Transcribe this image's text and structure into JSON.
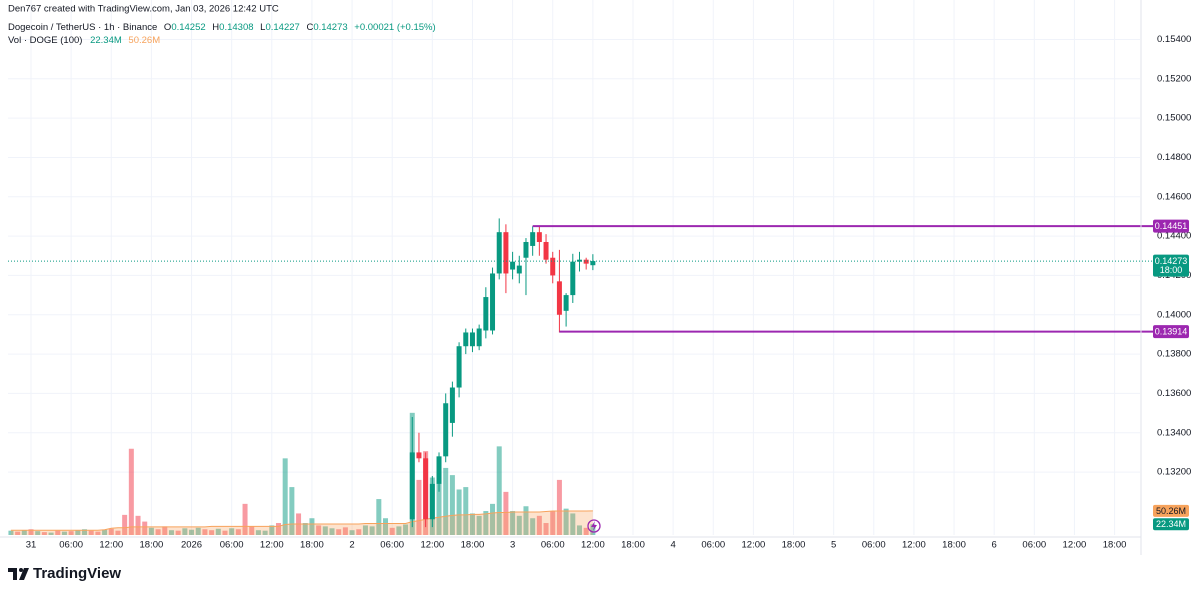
{
  "header": {
    "credit": "Den767 created with TradingView.com, Jan 03, 2026 12:42 UTC",
    "symbol": "Dogecoin / TetherUS · 1h · Binance",
    "change": "+0.00021 (+0.15%)",
    "volume_study": "Vol · DOGE (100)"
  },
  "chart_data": {
    "type": "candlestick",
    "ohlc_letters": [
      "O",
      "H",
      "L",
      "C"
    ],
    "x": [
      57,
      58,
      59,
      60,
      61,
      62,
      63,
      64,
      65,
      66,
      67,
      68,
      69,
      70,
      71,
      72,
      73,
      74,
      75,
      76,
      77,
      78,
      79,
      80,
      81,
      82,
      83,
      84
    ],
    "open": [
      0.1296,
      0.133,
      0.1327,
      0.1296,
      0.1314,
      0.1328,
      0.1345,
      0.1363,
      0.1384,
      0.1384,
      0.1384,
      0.1392,
      0.1392,
      0.1421,
      0.1442,
      0.1423,
      0.1421,
      0.1429,
      0.1435,
      0.1442,
      0.1437,
      0.1429,
      0.1417,
      0.1402,
      0.141,
      0.1427,
      0.1428,
      0.14252
    ],
    "high": [
      0.1348,
      0.134,
      0.133,
      0.1318,
      0.133,
      0.136,
      0.1366,
      0.1386,
      0.1393,
      0.1393,
      0.1395,
      0.1414,
      0.1424,
      0.1449,
      0.1446,
      0.1432,
      0.143,
      0.1439,
      0.1445,
      0.1445,
      0.1441,
      0.1432,
      0.1433,
      0.1411,
      0.1431,
      0.1432,
      0.1429,
      0.14308
    ],
    "low": [
      0.1292,
      0.1325,
      0.1292,
      0.1292,
      0.131,
      0.1325,
      0.1338,
      0.1358,
      0.138,
      0.1381,
      0.1382,
      0.1388,
      0.139,
      0.1418,
      0.1411,
      0.1418,
      0.1416,
      0.141,
      0.143,
      0.143,
      0.1426,
      0.1416,
      0.1391,
      0.1394,
      0.1406,
      0.1422,
      0.1423,
      0.14227
    ],
    "close": [
      0.133,
      0.1327,
      0.1296,
      0.1314,
      0.1328,
      0.1355,
      0.1363,
      0.1384,
      0.1391,
      0.1391,
      0.1393,
      0.1409,
      0.1421,
      0.1442,
      0.1421,
      0.1427,
      0.1425,
      0.1437,
      0.1442,
      0.1437,
      0.1428,
      0.142,
      0.14,
      0.141,
      0.1427,
      0.1428,
      0.1426,
      0.14273
    ],
    "up_color": "#089981",
    "down_color": "#f23645",
    "volume": {
      "x": [
        -3,
        -2,
        -1,
        0,
        1,
        2,
        3,
        4,
        5,
        6,
        7,
        8,
        9,
        10,
        11,
        12,
        13,
        14,
        15,
        16,
        17,
        18,
        19,
        20,
        21,
        22,
        23,
        24,
        25,
        26,
        27,
        28,
        29,
        30,
        31,
        32,
        33,
        34,
        35,
        36,
        37,
        38,
        39,
        40,
        41,
        42,
        43,
        44,
        45,
        46,
        47,
        48,
        49,
        50,
        51,
        52,
        53,
        54,
        55,
        56,
        57,
        58,
        59,
        60,
        61,
        62,
        63,
        64,
        65,
        66,
        67,
        68,
        69,
        70,
        71,
        72,
        73,
        74,
        75,
        76,
        77,
        78,
        79,
        80,
        81,
        82,
        83,
        84
      ],
      "values": [
        9,
        7,
        10,
        12,
        8,
        6,
        5,
        9,
        7,
        8,
        10,
        12,
        9,
        7,
        11,
        13,
        9,
        42,
        180,
        40,
        28,
        15,
        12,
        18,
        10,
        9,
        14,
        11,
        15,
        12,
        10,
        13,
        9,
        14,
        12,
        65,
        18,
        10,
        9,
        20,
        25,
        160,
        100,
        45,
        25,
        35,
        20,
        18,
        14,
        12,
        16,
        10,
        12,
        20,
        18,
        75,
        35,
        15,
        18,
        22,
        255,
        115,
        175,
        120,
        130,
        140,
        125,
        95,
        100,
        45,
        40,
        50,
        65,
        185,
        90,
        50,
        40,
        60,
        35,
        40,
        25,
        50,
        115,
        55,
        45,
        20,
        15,
        22.34
      ],
      "up": [
        true,
        false,
        true,
        false,
        true,
        false,
        true,
        false,
        true,
        false,
        true,
        true,
        false,
        false,
        true,
        false,
        false,
        false,
        false,
        false,
        false,
        true,
        false,
        false,
        true,
        false,
        true,
        true,
        true,
        false,
        false,
        true,
        false,
        true,
        false,
        false,
        false,
        true,
        true,
        true,
        false,
        true,
        true,
        false,
        true,
        true,
        false,
        true,
        true,
        false,
        false,
        true,
        false,
        true,
        true,
        true,
        true,
        false,
        true,
        true,
        true,
        false,
        false,
        true,
        true,
        true,
        true,
        true,
        true,
        true,
        true,
        true,
        true,
        true,
        false,
        true,
        true,
        true,
        true,
        false,
        false,
        false,
        false,
        true,
        true,
        true,
        false,
        true
      ],
      "last_label": "22.34M"
    },
    "volume_ma": {
      "values": [
        10,
        10,
        10,
        10,
        10,
        10,
        10,
        10,
        10,
        10,
        10,
        10,
        10,
        10,
        11,
        14,
        15,
        15,
        17,
        17,
        17,
        17,
        17,
        17,
        17,
        17,
        17,
        17,
        17,
        17,
        18,
        18,
        18,
        18,
        18,
        18,
        18,
        18,
        18,
        18,
        18,
        22,
        23,
        23,
        23,
        23,
        23,
        23,
        23,
        23,
        23,
        23,
        23,
        24,
        24,
        24,
        24,
        24,
        24,
        24,
        28,
        30,
        33,
        35,
        37,
        39,
        41,
        42,
        42,
        43,
        43,
        44,
        46,
        47,
        47,
        48,
        48,
        48,
        48,
        48,
        49,
        50,
        50,
        50,
        50,
        50,
        50,
        50.26
      ],
      "color": "#f7a35c",
      "last_label": "50.26M"
    },
    "xlim": [
      -3.44,
      165.8
    ],
    "xticks": [
      {
        "value": 0,
        "label": "31"
      },
      {
        "value": 6,
        "label": "06:00"
      },
      {
        "value": 12,
        "label": "12:00"
      },
      {
        "value": 18,
        "label": "18:00"
      },
      {
        "value": 24,
        "label": "2026"
      },
      {
        "value": 30,
        "label": "06:00"
      },
      {
        "value": 36,
        "label": "12:00"
      },
      {
        "value": 42,
        "label": "18:00"
      },
      {
        "value": 48,
        "label": "2"
      },
      {
        "value": 54,
        "label": "06:00"
      },
      {
        "value": 60,
        "label": "12:00"
      },
      {
        "value": 66,
        "label": "18:00"
      },
      {
        "value": 72,
        "label": "3"
      },
      {
        "value": 78,
        "label": "06:00"
      },
      {
        "value": 84,
        "label": "12:00"
      },
      {
        "value": 90,
        "label": "18:00"
      },
      {
        "value": 96,
        "label": "4"
      },
      {
        "value": 102,
        "label": "06:00"
      },
      {
        "value": 108,
        "label": "12:00"
      },
      {
        "value": 114,
        "label": "18:00"
      },
      {
        "value": 120,
        "label": "5"
      },
      {
        "value": 126,
        "label": "06:00"
      },
      {
        "value": 132,
        "label": "12:00"
      },
      {
        "value": 138,
        "label": "18:00"
      },
      {
        "value": 144,
        "label": "6"
      },
      {
        "value": 150,
        "label": "06:00"
      },
      {
        "value": 156,
        "label": "12:00"
      },
      {
        "value": 162,
        "label": "18:00"
      }
    ],
    "ylim": [
      0.1288,
      0.1556
    ],
    "yticks": [
      {
        "value": 0.132,
        "label": "0.13200"
      },
      {
        "value": 0.134,
        "label": "0.13400"
      },
      {
        "value": 0.136,
        "label": "0.13600"
      },
      {
        "value": 0.138,
        "label": "0.13800"
      },
      {
        "value": 0.14,
        "label": "0.14000"
      },
      {
        "value": 0.142,
        "label": "0.14200"
      },
      {
        "value": 0.144,
        "label": "0.14400"
      },
      {
        "value": 0.146,
        "label": "0.14600"
      },
      {
        "value": 0.148,
        "label": "0.14800"
      },
      {
        "value": 0.15,
        "label": "0.15000"
      },
      {
        "value": 0.152,
        "label": "0.15200"
      },
      {
        "value": 0.154,
        "label": "0.15400"
      }
    ],
    "volume_lim": [
      0,
      1100
    ],
    "levels": [
      {
        "value": 0.14451,
        "from_x": 75,
        "color": "#9c27b0"
      },
      {
        "value": 0.13914,
        "from_x": 79,
        "color": "#9c27b0"
      }
    ],
    "countdown": "18:00",
    "grid": true
  },
  "footer": {
    "brand": "TradingView"
  }
}
